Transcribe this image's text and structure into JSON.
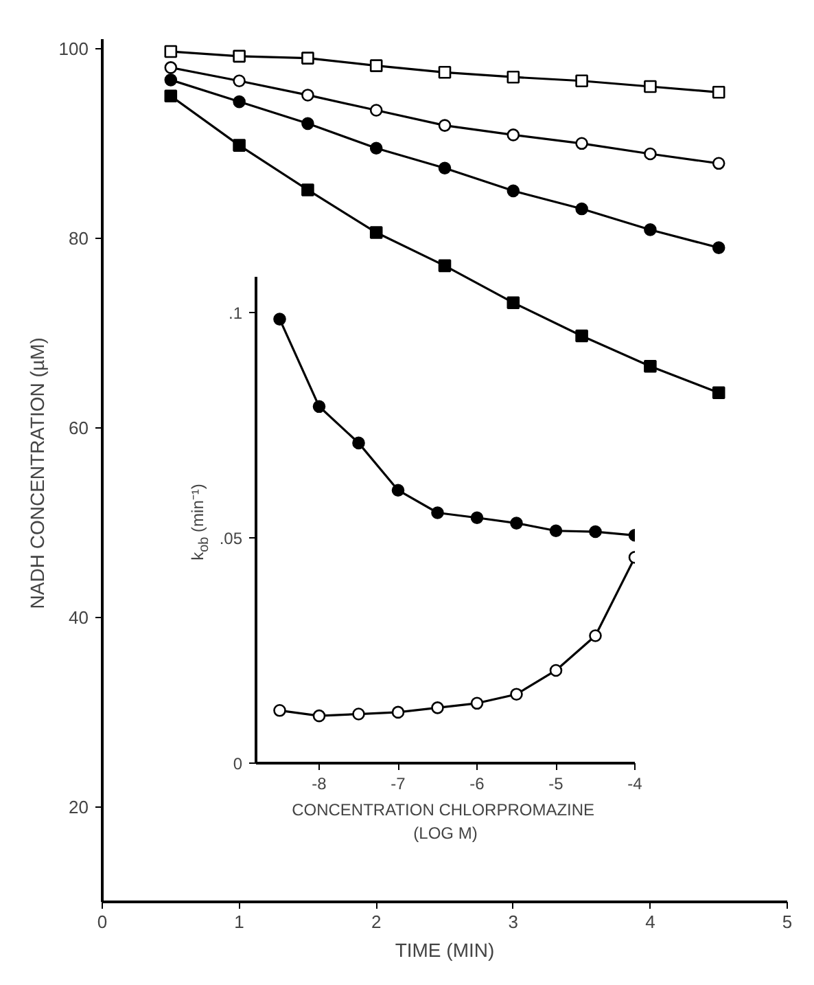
{
  "chart_data": [
    {
      "type": "line",
      "xlabel": "TIME (MIN)",
      "ylabel": "NADH CONCENTRATION  (µM)",
      "xlim": [
        0,
        5
      ],
      "ylim": [
        10,
        101
      ],
      "xticks": [
        0,
        1,
        2,
        3,
        4,
        5
      ],
      "yticks": [
        20,
        40,
        60,
        80,
        100
      ],
      "x": [
        0.5,
        1,
        1.5,
        2,
        2.5,
        3,
        3.5,
        4,
        4.5
      ],
      "grid": false,
      "series": [
        {
          "color": "#ffffff",
          "marker": "square",
          "values": [
            99.7,
            99.2,
            99.0,
            98.2,
            97.5,
            97.0,
            96.6,
            96.0,
            95.4
          ]
        },
        {
          "color": "#ffffff",
          "marker": "circle",
          "values": [
            98.0,
            96.6,
            95.1,
            93.5,
            91.9,
            90.9,
            90.0,
            88.9,
            87.9
          ]
        },
        {
          "color": "#000000",
          "marker": "circle",
          "values": [
            96.7,
            94.4,
            92.1,
            89.5,
            87.4,
            85.0,
            83.1,
            80.9,
            79.0
          ]
        },
        {
          "color": "#000000",
          "marker": "square",
          "values": [
            95.0,
            89.8,
            85.1,
            80.6,
            77.1,
            73.2,
            69.7,
            66.5,
            63.7
          ]
        }
      ]
    },
    {
      "type": "line",
      "xlabel": "CONCENTRATION  CHLORPROMAZINE\n(LOG M)",
      "ylabel": "k$_{ob}$ (min⁻¹)",
      "xlim": [
        -8.8,
        -4
      ],
      "ylim": [
        0,
        0.108
      ],
      "xticks": [
        -8,
        -7,
        -6,
        -5,
        -4
      ],
      "yticks": [
        {
          "value": 0,
          "label": "0"
        },
        {
          "value": 0.05,
          "label": ".05"
        },
        {
          "value": 0.1,
          "label": ".1"
        }
      ],
      "x": [
        -8.5,
        -8,
        -7.5,
        -7,
        -6.5,
        -6,
        -5.5,
        -5,
        -4.5,
        -4
      ],
      "grid": false,
      "series": [
        {
          "color": "#000000",
          "marker": "circle",
          "values": [
            0.0986,
            0.0792,
            0.0711,
            0.0606,
            0.0556,
            0.0545,
            0.0533,
            0.0516,
            0.0514,
            0.0506
          ]
        },
        {
          "color": "#ffffff",
          "marker": "circle",
          "values": [
            0.0117,
            0.0105,
            0.0109,
            0.0113,
            0.0123,
            0.0133,
            0.0153,
            0.0206,
            0.0283,
            0.0457
          ]
        }
      ]
    }
  ]
}
